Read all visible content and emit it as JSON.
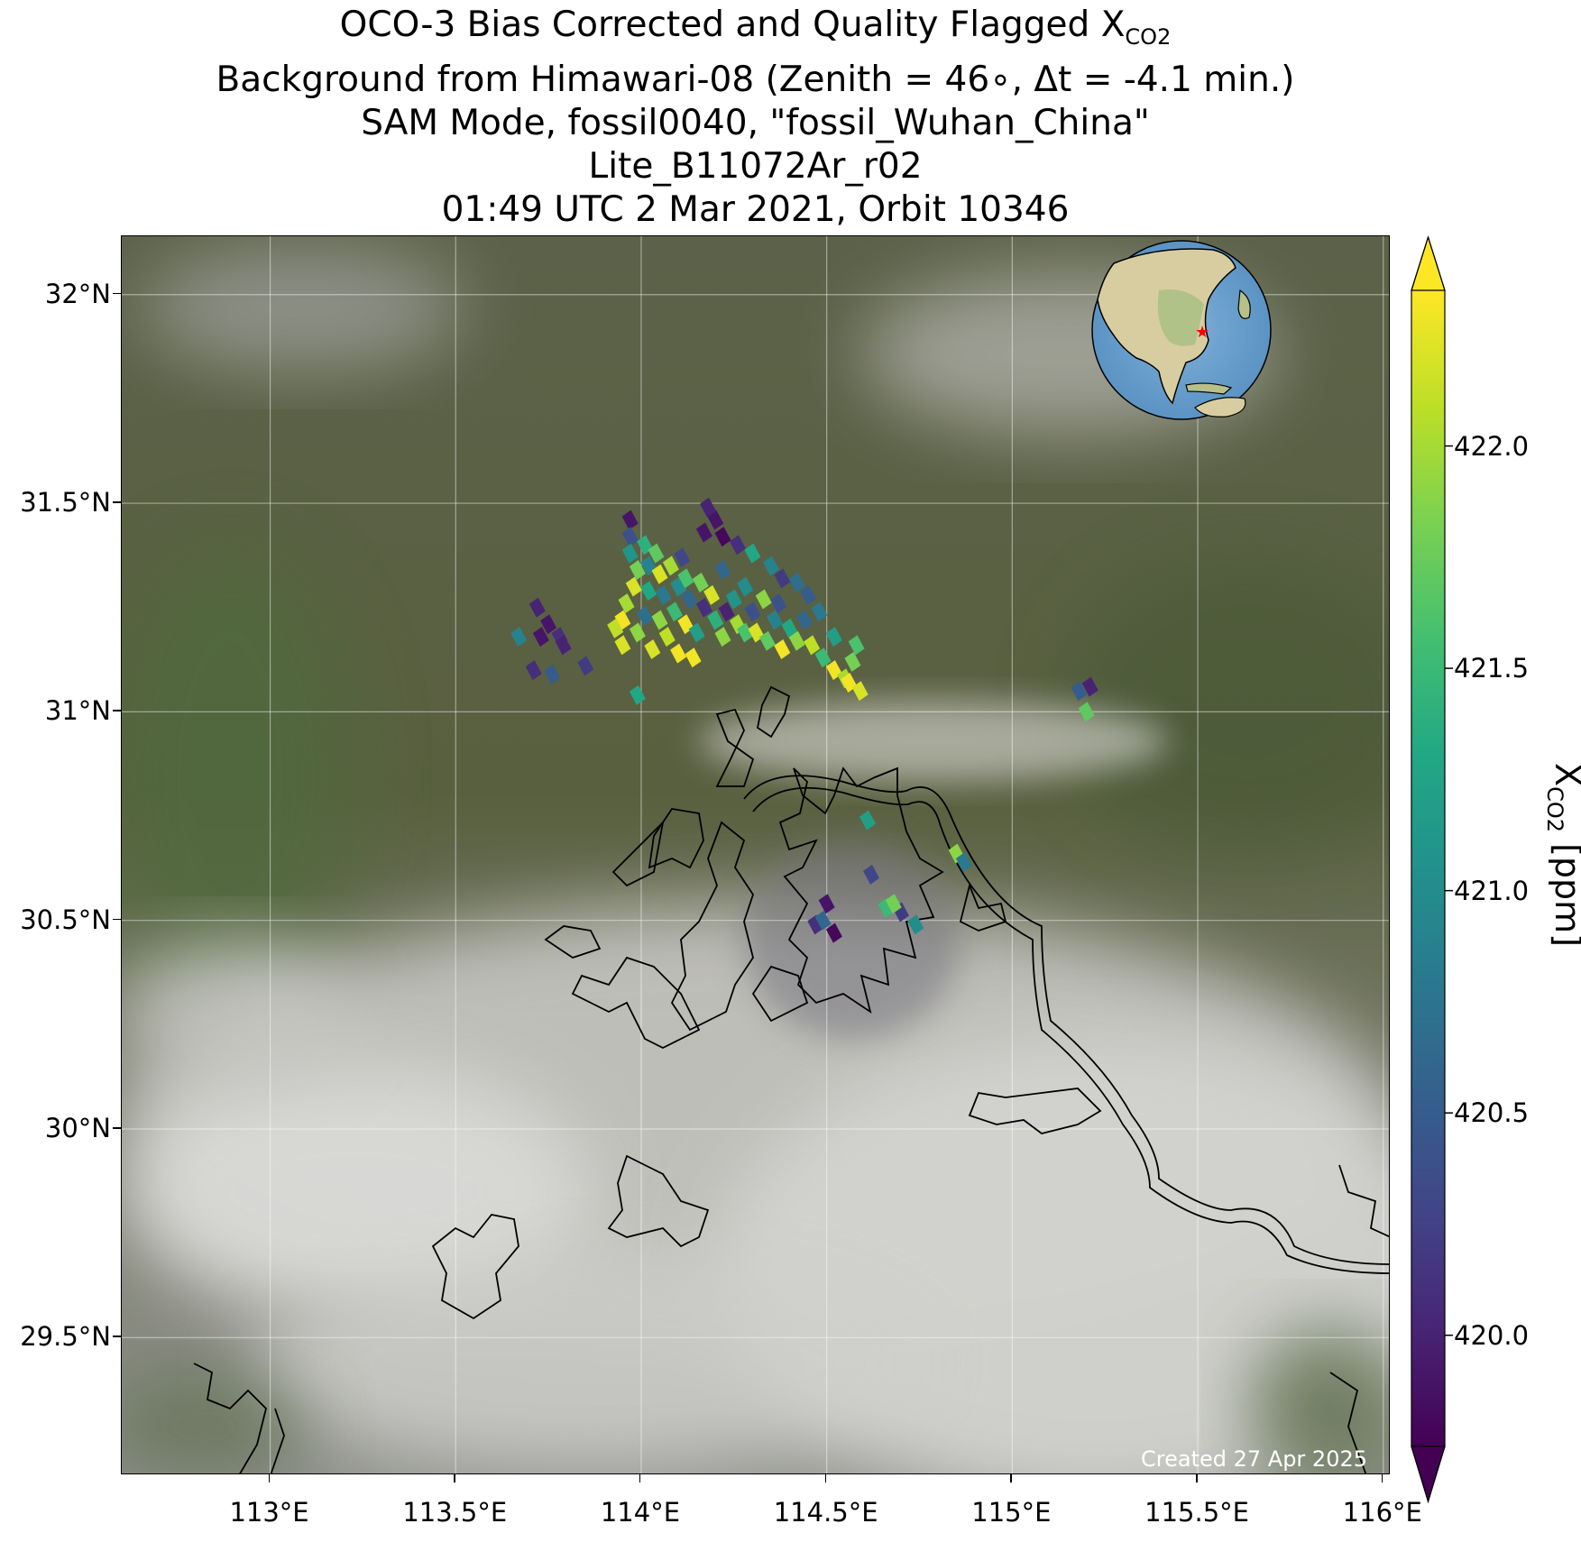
{
  "title": {
    "line1_prefix": "OCO-3 Bias Corrected and Quality Flagged X",
    "line1_sub": "CO2",
    "line2": "Background from Himawari-08 (Zenith = 46∘, Δt = -4.1 min.)",
    "line3": "SAM Mode, fossil0040, \"fossil_Wuhan_China\"",
    "line4": "Lite_B11072Ar_r02",
    "line5": "01:49 UTC 2 Mar 2021, Orbit 10346"
  },
  "map": {
    "lon_range": [
      112.6,
      116.02
    ],
    "lat_range": [
      29.17,
      32.14
    ],
    "lon_ticks": [
      {
        "value": 113.0,
        "label": "113°E"
      },
      {
        "value": 113.5,
        "label": "113.5°E"
      },
      {
        "value": 114.0,
        "label": "114°E"
      },
      {
        "value": 114.5,
        "label": "114.5°E"
      },
      {
        "value": 115.0,
        "label": "115°E"
      },
      {
        "value": 115.5,
        "label": "115.5°E"
      },
      {
        "value": 116.0,
        "label": "116°E"
      }
    ],
    "lat_ticks": [
      {
        "value": 32.0,
        "label": "32°N"
      },
      {
        "value": 31.5,
        "label": "31.5°N"
      },
      {
        "value": 31.0,
        "label": "31°N"
      },
      {
        "value": 30.5,
        "label": "30.5°N"
      },
      {
        "value": 30.0,
        "label": "30°N"
      },
      {
        "value": 29.5,
        "label": "29.5°N"
      }
    ],
    "gridlines": true,
    "background": "satellite true-color imagery (cloud cover in south)",
    "inset_globe": {
      "marker": "red star at target location",
      "position": "top-right"
    },
    "credit": "Created 27 Apr 2025"
  },
  "colorbar": {
    "colormap": "viridis",
    "vmin": 419.75,
    "vmax": 422.35,
    "extend": "both",
    "ticks": [
      {
        "value": 422.0,
        "label": "422.0"
      },
      {
        "value": 421.5,
        "label": "421.5"
      },
      {
        "value": 421.0,
        "label": "421.0"
      },
      {
        "value": 420.5,
        "label": "420.5"
      },
      {
        "value": 420.0,
        "label": "420.0"
      }
    ],
    "label_prefix": "X",
    "label_sub": "CO2",
    "label_suffix": " [ppm]"
  },
  "chart_data": {
    "type": "scatter",
    "xlabel": "",
    "ylabel": "",
    "xlim": [
      112.6,
      116.02
    ],
    "ylim": [
      29.17,
      32.14
    ],
    "value_name": "XCO2 [ppm]",
    "points": [
      {
        "x": 113.97,
        "y": 31.46,
        "v": 419.9
      },
      {
        "x": 113.97,
        "y": 31.42,
        "v": 420.4
      },
      {
        "x": 113.97,
        "y": 31.38,
        "v": 421.1
      },
      {
        "x": 113.99,
        "y": 31.34,
        "v": 421.8
      },
      {
        "x": 113.98,
        "y": 31.3,
        "v": 422.2
      },
      {
        "x": 113.96,
        "y": 31.26,
        "v": 422.0
      },
      {
        "x": 113.95,
        "y": 31.22,
        "v": 422.3
      },
      {
        "x": 113.93,
        "y": 31.2,
        "v": 422.1
      },
      {
        "x": 113.95,
        "y": 31.16,
        "v": 422.2
      },
      {
        "x": 113.99,
        "y": 31.19,
        "v": 421.9
      },
      {
        "x": 114.01,
        "y": 31.23,
        "v": 420.7
      },
      {
        "x": 114.02,
        "y": 31.29,
        "v": 421.3
      },
      {
        "x": 114.02,
        "y": 31.35,
        "v": 420.9
      },
      {
        "x": 114.01,
        "y": 31.4,
        "v": 421.4
      },
      {
        "x": 114.04,
        "y": 31.38,
        "v": 421.7
      },
      {
        "x": 114.05,
        "y": 31.33,
        "v": 422.2
      },
      {
        "x": 114.06,
        "y": 31.28,
        "v": 420.8
      },
      {
        "x": 114.05,
        "y": 31.22,
        "v": 421.9
      },
      {
        "x": 114.07,
        "y": 31.18,
        "v": 422.1
      },
      {
        "x": 114.09,
        "y": 31.24,
        "v": 421.5
      },
      {
        "x": 114.1,
        "y": 31.3,
        "v": 421.0
      },
      {
        "x": 114.08,
        "y": 31.35,
        "v": 422.0
      },
      {
        "x": 114.11,
        "y": 31.37,
        "v": 420.3
      },
      {
        "x": 114.12,
        "y": 31.32,
        "v": 421.6
      },
      {
        "x": 114.13,
        "y": 31.27,
        "v": 420.6
      },
      {
        "x": 114.12,
        "y": 31.21,
        "v": 422.3
      },
      {
        "x": 114.15,
        "y": 31.19,
        "v": 421.2
      },
      {
        "x": 114.17,
        "y": 31.25,
        "v": 420.1
      },
      {
        "x": 114.16,
        "y": 31.31,
        "v": 421.8
      },
      {
        "x": 114.19,
        "y": 31.28,
        "v": 422.2
      },
      {
        "x": 114.2,
        "y": 31.22,
        "v": 421.4
      },
      {
        "x": 114.22,
        "y": 31.18,
        "v": 421.9
      },
      {
        "x": 114.23,
        "y": 31.24,
        "v": 420.0
      },
      {
        "x": 114.25,
        "y": 31.27,
        "v": 421.1
      },
      {
        "x": 114.26,
        "y": 31.21,
        "v": 422.0
      },
      {
        "x": 114.28,
        "y": 31.19,
        "v": 421.6
      },
      {
        "x": 114.3,
        "y": 31.24,
        "v": 420.4
      },
      {
        "x": 114.31,
        "y": 31.19,
        "v": 422.2
      },
      {
        "x": 114.34,
        "y": 31.17,
        "v": 421.7
      },
      {
        "x": 114.36,
        "y": 31.22,
        "v": 420.9
      },
      {
        "x": 114.38,
        "y": 31.15,
        "v": 422.3
      },
      {
        "x": 114.4,
        "y": 31.2,
        "v": 421.3
      },
      {
        "x": 114.42,
        "y": 31.17,
        "v": 421.9
      },
      {
        "x": 114.44,
        "y": 31.22,
        "v": 420.6
      },
      {
        "x": 114.46,
        "y": 31.16,
        "v": 422.1
      },
      {
        "x": 114.49,
        "y": 31.13,
        "v": 421.5
      },
      {
        "x": 114.52,
        "y": 31.1,
        "v": 422.3
      },
      {
        "x": 114.55,
        "y": 31.08,
        "v": 422.0
      },
      {
        "x": 114.57,
        "y": 31.12,
        "v": 421.8
      },
      {
        "x": 114.56,
        "y": 31.07,
        "v": 422.3
      },
      {
        "x": 114.59,
        "y": 31.05,
        "v": 422.2
      },
      {
        "x": 114.58,
        "y": 31.16,
        "v": 421.6
      },
      {
        "x": 114.52,
        "y": 31.18,
        "v": 421.2
      },
      {
        "x": 114.48,
        "y": 31.24,
        "v": 420.8
      },
      {
        "x": 114.45,
        "y": 31.28,
        "v": 420.5
      },
      {
        "x": 114.42,
        "y": 31.31,
        "v": 420.7
      },
      {
        "x": 114.38,
        "y": 31.32,
        "v": 420.2
      },
      {
        "x": 114.35,
        "y": 31.35,
        "v": 420.9
      },
      {
        "x": 114.3,
        "y": 31.38,
        "v": 421.3
      },
      {
        "x": 114.26,
        "y": 31.4,
        "v": 420.1
      },
      {
        "x": 114.22,
        "y": 31.42,
        "v": 419.8
      },
      {
        "x": 114.2,
        "y": 31.46,
        "v": 419.9
      },
      {
        "x": 114.18,
        "y": 31.49,
        "v": 420.0
      },
      {
        "x": 114.17,
        "y": 31.43,
        "v": 419.9
      },
      {
        "x": 114.22,
        "y": 31.34,
        "v": 420.6
      },
      {
        "x": 114.28,
        "y": 31.3,
        "v": 421.0
      },
      {
        "x": 114.33,
        "y": 31.27,
        "v": 421.9
      },
      {
        "x": 114.37,
        "y": 31.26,
        "v": 420.4
      },
      {
        "x": 114.1,
        "y": 31.14,
        "v": 422.3
      },
      {
        "x": 114.14,
        "y": 31.13,
        "v": 422.3
      },
      {
        "x": 114.03,
        "y": 31.15,
        "v": 422.2
      },
      {
        "x": 113.99,
        "y": 31.04,
        "v": 421.3
      },
      {
        "x": 113.72,
        "y": 31.25,
        "v": 420.0
      },
      {
        "x": 113.75,
        "y": 31.21,
        "v": 419.9
      },
      {
        "x": 113.78,
        "y": 31.18,
        "v": 420.1
      },
      {
        "x": 113.73,
        "y": 31.18,
        "v": 419.9
      },
      {
        "x": 113.79,
        "y": 31.16,
        "v": 420.0
      },
      {
        "x": 113.67,
        "y": 31.18,
        "v": 420.9
      },
      {
        "x": 113.71,
        "y": 31.1,
        "v": 420.1
      },
      {
        "x": 113.76,
        "y": 31.09,
        "v": 420.5
      },
      {
        "x": 113.85,
        "y": 31.11,
        "v": 420.2
      },
      {
        "x": 115.18,
        "y": 31.05,
        "v": 420.5
      },
      {
        "x": 115.21,
        "y": 31.06,
        "v": 420.0
      },
      {
        "x": 115.2,
        "y": 31.0,
        "v": 421.7
      },
      {
        "x": 114.61,
        "y": 30.74,
        "v": 421.2
      },
      {
        "x": 114.85,
        "y": 30.66,
        "v": 421.9
      },
      {
        "x": 114.87,
        "y": 30.64,
        "v": 420.8
      },
      {
        "x": 114.62,
        "y": 30.61,
        "v": 420.3
      },
      {
        "x": 114.5,
        "y": 30.54,
        "v": 419.9
      },
      {
        "x": 114.47,
        "y": 30.49,
        "v": 420.1
      },
      {
        "x": 114.49,
        "y": 30.5,
        "v": 420.6
      },
      {
        "x": 114.52,
        "y": 30.47,
        "v": 419.8
      },
      {
        "x": 114.66,
        "y": 30.53,
        "v": 421.5
      },
      {
        "x": 114.7,
        "y": 30.52,
        "v": 420.2
      },
      {
        "x": 114.68,
        "y": 30.54,
        "v": 421.8
      },
      {
        "x": 114.74,
        "y": 30.49,
        "v": 421.0
      }
    ]
  }
}
